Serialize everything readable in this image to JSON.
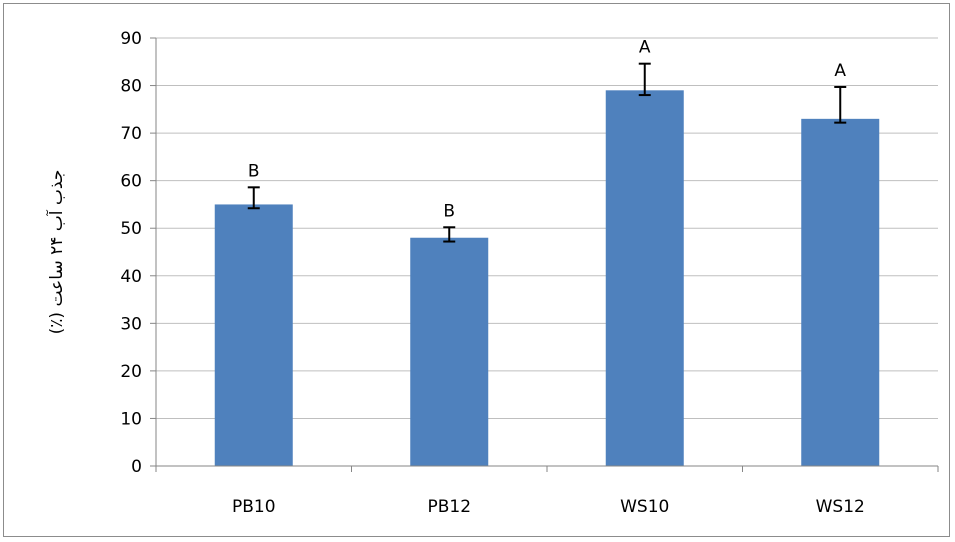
{
  "chart_data": {
    "type": "bar",
    "title": "",
    "xlabel": "",
    "ylabel": "جذب آب ۲۴ ساعت (٪)",
    "ylim": [
      0,
      90
    ],
    "yticks": [
      0,
      10,
      20,
      30,
      40,
      50,
      60,
      70,
      80,
      90
    ],
    "grid": true,
    "categories": [
      "PB10",
      "PB12",
      "WS10",
      "WS12"
    ],
    "values": [
      55,
      48,
      79,
      73
    ],
    "error_low": [
      54.2,
      47.2,
      78.0,
      72.2
    ],
    "error_high": [
      58.6,
      50.2,
      84.6,
      79.7
    ],
    "group_letters": [
      "B",
      "B",
      "A",
      "A"
    ],
    "bar_color": "#4f81bd",
    "grid_color": "#bfbfbf",
    "error_bar_color": "#000000"
  }
}
